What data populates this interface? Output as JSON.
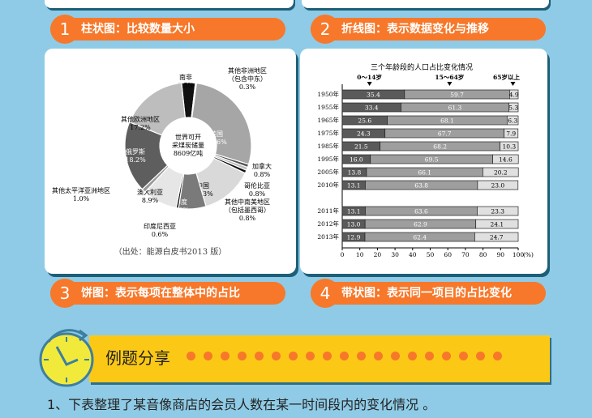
{
  "sections": [
    {
      "num": "1",
      "label": "柱状图：比较数量大小"
    },
    {
      "num": "2",
      "label": "折线图：表示数据变化与推移"
    },
    {
      "num": "3",
      "label": "饼图：表示每项在整体中的占比"
    },
    {
      "num": "4",
      "label": "带状图：表示同一项目的占比变化"
    }
  ],
  "chart_data": [
    {
      "type": "pie",
      "center_label": [
        "世界可开",
        "采煤炭储量",
        "8609亿吨"
      ],
      "source": "（出处：能源白皮书2013 版）",
      "slices": [
        {
          "name": "南非",
          "value": 3.5,
          "color": "#111111"
        },
        {
          "name": "其他非洲地区（包含中东）",
          "value": 0.3,
          "color": "#666666"
        },
        {
          "name": "美国",
          "value": 27.6,
          "color": "#a6a6a6"
        },
        {
          "name": "加拿大",
          "value": 0.8,
          "color": "#555555"
        },
        {
          "name": "哥伦比亚",
          "value": 0.8,
          "color": "#bbbbbb"
        },
        {
          "name": "其他中南美地区（包括墨西哥）",
          "value": 0.8,
          "color": "#111111"
        },
        {
          "name": "中国",
          "value": 13.3,
          "color": "#d9d9d9"
        },
        {
          "name": "印度",
          "value": 7.0,
          "color": "#7a7a7a"
        },
        {
          "name": "印度尼西亚",
          "value": 0.6,
          "color": "#111111"
        },
        {
          "name": "澳大利亚",
          "value": 8.9,
          "color": "#e6e6e6"
        },
        {
          "name": "其他太平洋亚洲地区",
          "value": 1.0,
          "color": "#999999"
        },
        {
          "name": "俄罗斯",
          "value": 18.2,
          "color": "#5e5e5e"
        },
        {
          "name": "其他欧洲地区",
          "value": 17.2,
          "color": "#bdbdbd"
        }
      ]
    },
    {
      "type": "bar",
      "stacked": true,
      "orientation": "horizontal",
      "title": "三个年龄段的人口占比变化情况",
      "xlim": [
        0,
        100
      ],
      "xunit": "(%)",
      "xticks": [
        0,
        10,
        20,
        30,
        40,
        50,
        60,
        70,
        80,
        90,
        100
      ],
      "categories": [
        "1950年",
        "1955年",
        "1965年",
        "1975年",
        "1985年",
        "1995年",
        "2005年",
        "2010年",
        "2011年",
        "2012年",
        "2013年"
      ],
      "series": [
        {
          "name": "0～14岁",
          "color": "#5a5a5a",
          "values": [
            35.4,
            33.4,
            25.6,
            24.3,
            21.5,
            16.0,
            13.8,
            13.1,
            13.1,
            13.0,
            12.9
          ]
        },
        {
          "name": "15～64岁",
          "color": "#9e9e9e",
          "values": [
            59.7,
            61.3,
            68.1,
            67.7,
            68.2,
            69.5,
            66.1,
            63.8,
            63.6,
            62.9,
            62.4
          ]
        },
        {
          "name": "65岁以上",
          "color": "#e0e0e0",
          "values": [
            4.9,
            5.3,
            6.3,
            7.9,
            10.3,
            14.6,
            20.2,
            23.0,
            23.3,
            24.1,
            24.7
          ]
        }
      ]
    }
  ],
  "banner": {
    "title": "例题分享"
  },
  "question": "1、下表整理了某音像商店的会员人数在某一时间段内的变化情况 。"
}
